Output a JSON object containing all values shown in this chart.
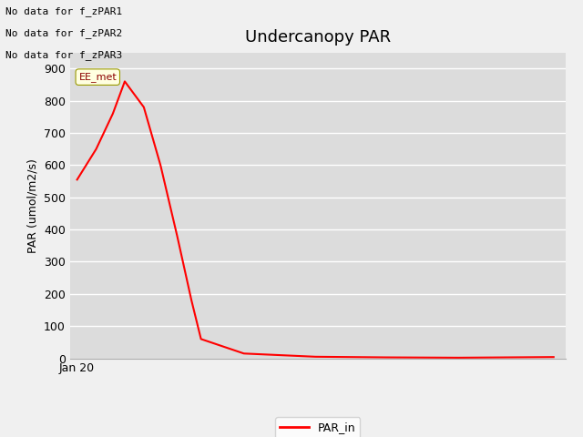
{
  "title": "Undercanopy PAR",
  "ylabel": "PAR (umol/m2/s)",
  "no_data_texts": [
    "No data for f_zPAR1",
    "No data for f_zPAR2",
    "No data for f_zPAR3"
  ],
  "ee_met_label": "EE_met",
  "legend_label": "PAR_in",
  "line_color": "#ff0000",
  "plot_bg_color": "#dcdcdc",
  "fig_bg_color": "#f0f0f0",
  "ylim": [
    0,
    950
  ],
  "yticks": [
    0,
    100,
    200,
    300,
    400,
    500,
    600,
    700,
    800,
    900
  ],
  "x_data": [
    0.0,
    0.8,
    1.5,
    2.0,
    2.8,
    3.5,
    4.2,
    4.8,
    5.2,
    7.0,
    10.0,
    13.0,
    16.0,
    20.0
  ],
  "y_data": [
    555,
    650,
    760,
    860,
    780,
    600,
    380,
    180,
    60,
    15,
    5,
    3,
    2,
    4
  ],
  "xlabel_tick": "Jan 20",
  "title_fontsize": 13,
  "label_fontsize": 9,
  "tick_fontsize": 9,
  "no_data_fontsize": 8,
  "ee_met_fontsize": 8,
  "linewidth": 1.5,
  "grid_color": "#ffffff",
  "grid_linewidth": 1.0
}
